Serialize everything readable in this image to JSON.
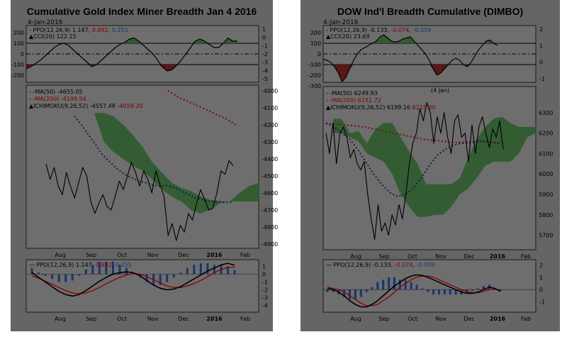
{
  "chart_data": [
    {
      "type": "line",
      "title": "Cumulative Gold Index Miner Breadth Jan 4 2016",
      "date": "4-Jan-2016",
      "x_labels": [
        "Aug",
        "Sep",
        "Oct",
        "Nov",
        "Dec",
        "2016",
        "Feb"
      ],
      "colors": {
        "price": "#000000",
        "ma50": "#0c1e46",
        "ma200": "#7a0b0b",
        "cloud_bear": "#865050",
        "cloud_bull": "#2f5b2f",
        "ppo_signal": "#8c0000",
        "histogram": "#17356e"
      },
      "ppo_cci_panel": {
        "ppo_label": "PPO(12,26,9)",
        "ppo_values": [
          "1.147",
          "0.892",
          "0.255"
        ],
        "cci_label": "CCI(20)",
        "cci_value": "122.15",
        "left_ticks": [
          "200",
          "100",
          "0",
          "-100",
          "-200"
        ],
        "right_ticks": [
          "1",
          "0",
          "-1",
          "-2",
          "-3",
          "-4",
          "-5"
        ],
        "cci_levels": [
          100,
          0,
          -100
        ],
        "cci": [
          -140,
          -120,
          -90,
          -60,
          -20,
          20,
          60,
          90,
          100,
          80,
          40,
          0,
          -40,
          -80,
          -120,
          -100,
          -60,
          -20,
          20,
          60,
          90,
          110,
          140,
          150,
          120,
          80,
          40,
          0,
          -60,
          -120,
          -160,
          -150,
          -110,
          -60,
          0,
          60,
          120,
          140,
          120,
          90,
          60,
          60,
          100,
          150,
          120,
          120
        ]
      },
      "main_panel": {
        "ma50_label": "MA(50)",
        "ma50_value": "-4655.05",
        "ma200_label": "MA(200)",
        "ma200_value": "-4199.94",
        "ichimoku_label": "ICHIMOKU(9,26,52)",
        "ichimoku_value": "-4557.48",
        "ichimoku_value2": "-4659.20",
        "y_ticks": [
          "-4000",
          "-4100",
          "-4200",
          "-4300",
          "-4400",
          "-4500",
          "-4600",
          "-4700",
          "-4800",
          "-4900"
        ],
        "ylim": [
          -4900,
          -4000
        ],
        "price": [
          -4430,
          -4520,
          -4450,
          -4560,
          -4610,
          -4480,
          -4560,
          -4630,
          -4540,
          -4450,
          -4500,
          -4650,
          -4720,
          -4660,
          -4610,
          -4680,
          -4700,
          -4620,
          -4530,
          -4580,
          -4500,
          -4420,
          -4480,
          -4560,
          -4470,
          -4520,
          -4600,
          -4470,
          -4550,
          -4620,
          -4850,
          -4780,
          -4880,
          -4790,
          -4830,
          -4720,
          -4760,
          -4660,
          -4580,
          -4640,
          -4700,
          -4690,
          -4600,
          -4470,
          -4490,
          -4410,
          -4440
        ],
        "ma50": [
          -4150,
          -4200,
          -4260,
          -4320,
          -4380,
          -4420,
          -4460,
          -4490,
          -4510,
          -4530,
          -4540,
          -4555,
          -4560,
          -4555,
          -4570,
          -4590,
          -4610,
          -4630,
          -4640,
          -4650,
          -4650,
          -4655,
          -4655
        ],
        "ma200": [
          -4000,
          -4040,
          -4070,
          -4100,
          -4130,
          -4160,
          -4200
        ],
        "cloud_upper": [
          -4130,
          -4130,
          -4150,
          -4200,
          -4260,
          -4330,
          -4420,
          -4480,
          -4540,
          -4570,
          -4590,
          -4620,
          -4640,
          -4650,
          -4650,
          -4600,
          -4560,
          -4540
        ],
        "cloud_lower": [
          -4130,
          -4300,
          -4360,
          -4400,
          -4440,
          -4470,
          -4520,
          -4580,
          -4620,
          -4650,
          -4700,
          -4720,
          -4700,
          -4660,
          -4650,
          -4650,
          -4650,
          -4650
        ]
      },
      "ppo_panel": {
        "ppo_label": "PPO(12,26,9)",
        "ppo_values": [
          "1.147",
          "0.892",
          "0.255"
        ],
        "y_ticks": [
          "1",
          "0",
          "-1",
          "-2",
          "-3",
          "-4"
        ],
        "ylim": [
          -4.5,
          1.5
        ],
        "ppo": [
          0.2,
          -0.4,
          -1.0,
          -1.6,
          -2.2,
          -2.6,
          -2.8,
          -2.6,
          -2.1,
          -1.5,
          -0.9,
          -0.4,
          0.0,
          0.2,
          0.3,
          0.2,
          -0.2,
          -0.8,
          -1.4,
          -1.8,
          -2.0,
          -1.9,
          -1.6,
          -1.1,
          -0.6,
          -0.1,
          0.4,
          0.8,
          1.2,
          1.4,
          1.15
        ],
        "signal": [
          -0.2,
          -0.5,
          -0.9,
          -1.3,
          -1.7,
          -2.1,
          -2.4,
          -2.5,
          -2.4,
          -2.1,
          -1.7,
          -1.2,
          -0.8,
          -0.4,
          -0.1,
          0.1,
          0.0,
          -0.3,
          -0.7,
          -1.1,
          -1.5,
          -1.7,
          -1.7,
          -1.5,
          -1.2,
          -0.8,
          -0.3,
          0.2,
          0.6,
          0.9,
          0.9
        ]
      }
    },
    {
      "type": "line",
      "title": "DOW Ind'l Breadth Cumulative (DIMBO)",
      "date": "4-Jan-2016",
      "annotation": "(4 Jan)",
      "x_labels": [
        "Aug",
        "Sep",
        "Oct",
        "Nov",
        "Dec",
        "2016",
        "Feb"
      ],
      "colors": {
        "price": "#000000",
        "ma50": "#0c1e46",
        "ma200": "#7a0b0b",
        "cloud_bear": "#865050",
        "cloud_bull": "#2f5b2f",
        "ppo_signal": "#8c0000",
        "histogram": "#17356e"
      },
      "ppo_cci_panel": {
        "ppo_label": "PPO(12,26,9)",
        "ppo_values": [
          "-0.133",
          "-0.074",
          "-0.059"
        ],
        "cci_label": "CCI(20)",
        "cci_value": "23.69",
        "left_ticks": [
          "200",
          "100",
          "0",
          "-100",
          "-200",
          "-300"
        ],
        "right_ticks": [
          "2",
          "1",
          "0",
          "-1"
        ],
        "cci_levels": [
          100,
          0,
          -100
        ],
        "cci": [
          -50,
          -60,
          -80,
          -120,
          -180,
          -260,
          -220,
          -140,
          -60,
          0,
          40,
          60,
          80,
          100,
          120,
          160,
          180,
          150,
          120,
          110,
          120,
          140,
          150,
          160,
          120,
          80,
          40,
          0,
          -60,
          -140,
          -200,
          -180,
          -140,
          -100,
          -60,
          -40,
          -60,
          -100,
          -120,
          -80,
          -20,
          40,
          80,
          120,
          130,
          100,
          80
        ]
      },
      "main_panel": {
        "ma50_label": "MA(50)",
        "ma50_value": "6249.93",
        "ma200_label": "MA(200)",
        "ma200_value": "6151.72",
        "ichimoku_label": "ICHIMOKU(9,26,52)",
        "ichimoku_value": "6199.16",
        "ichimoku_value2": "6215.00",
        "y_ticks": [
          "6300",
          "6200",
          "6100",
          "6000",
          "5900",
          "5800",
          "5700"
        ],
        "ylim": [
          5650,
          6400
        ],
        "price": [
          6200,
          6100,
          6250,
          6050,
          6200,
          6230,
          6180,
          6080,
          6120,
          6050,
          6020,
          6060,
          5900,
          5780,
          5680,
          5850,
          5720,
          5760,
          5700,
          5800,
          5750,
          5850,
          5780,
          5900,
          6050,
          6150,
          6200,
          6320,
          6260,
          6350,
          6300,
          6150,
          6280,
          6200,
          6300,
          6180,
          6100,
          6260,
          6290,
          6180,
          6200,
          6060,
          6240,
          6100,
          6230,
          6280,
          6200,
          6130,
          6220,
          6180,
          6260,
          6120
        ],
        "ma50": [
          6250,
          6230,
          6200,
          6170,
          6120,
          6060,
          6000,
          5950,
          5910,
          5890,
          5900,
          5930,
          5980,
          6040,
          6090,
          6120,
          6140,
          6150,
          6150,
          6160,
          6160,
          6155,
          6150
        ],
        "ma200": [
          6245,
          6245,
          6240,
          6235,
          6230,
          6220,
          6210,
          6200,
          6190,
          6180,
          6170,
          6165,
          6160,
          6155,
          6155,
          6160,
          6160,
          6155,
          6152
        ],
        "cloud_upper": [
          6270,
          6270,
          6200,
          6210,
          6150,
          6220,
          6250,
          6250,
          6180,
          6110,
          6050,
          5950,
          5950,
          5950,
          5950,
          5980,
          6080,
          6170,
          6230,
          6270,
          6280,
          6250,
          6230,
          6230,
          6230
        ],
        "cloud_lower": [
          6200,
          6200,
          6180,
          6160,
          6100,
          6080,
          6060,
          6000,
          5900,
          5840,
          5790,
          5790,
          5800,
          5800,
          5840,
          5900,
          5930,
          5980,
          6040,
          6060,
          6060,
          6060,
          6100,
          6180,
          6200
        ]
      },
      "ppo_panel": {
        "ppo_label": "PPO(12,26,9)",
        "ppo_values": [
          "-0.133",
          "-0.074",
          "-0.059"
        ],
        "y_ticks": [
          "2",
          "1",
          "0",
          "-1"
        ],
        "ylim": [
          -1.6,
          2.2
        ],
        "ppo": [
          0.1,
          0.0,
          -0.2,
          -0.5,
          -0.9,
          -1.2,
          -1.4,
          -1.4,
          -1.2,
          -0.9,
          -0.5,
          -0.1,
          0.3,
          0.6,
          0.9,
          1.1,
          1.2,
          1.15,
          1.0,
          0.8,
          0.6,
          0.4,
          0.2,
          0.0,
          -0.2,
          -0.3,
          -0.3,
          -0.2,
          0.0,
          0.2,
          0.1,
          -0.13
        ],
        "signal": [
          0.2,
          0.1,
          0.0,
          -0.2,
          -0.5,
          -0.8,
          -1.1,
          -1.3,
          -1.3,
          -1.2,
          -0.9,
          -0.6,
          -0.2,
          0.2,
          0.5,
          0.8,
          1.0,
          1.1,
          1.1,
          1.0,
          0.8,
          0.6,
          0.4,
          0.2,
          0.0,
          -0.15,
          -0.25,
          -0.25,
          -0.15,
          0.0,
          0.05,
          -0.07
        ]
      }
    }
  ]
}
